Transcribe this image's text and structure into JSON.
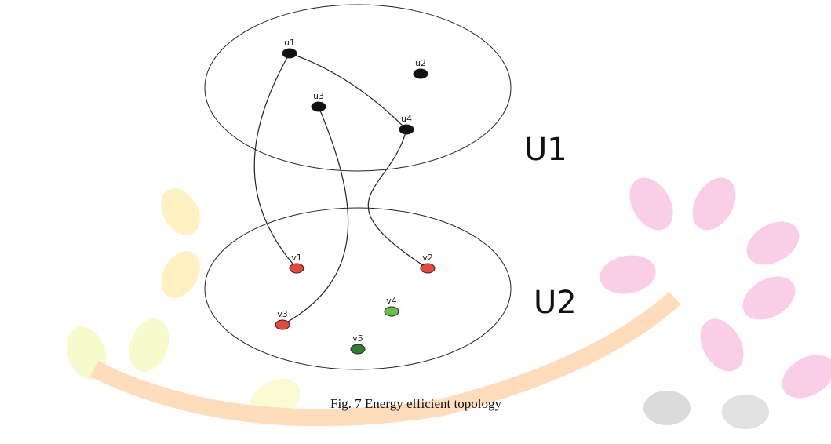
{
  "diagram": {
    "clusters": [
      {
        "label": "U1"
      },
      {
        "label": "U2"
      }
    ],
    "nodes": [
      {
        "label": "u1",
        "cluster": 0,
        "color": "#111111"
      },
      {
        "label": "u2",
        "cluster": 0,
        "color": "#111111"
      },
      {
        "label": "u3",
        "cluster": 0,
        "color": "#111111"
      },
      {
        "label": "u4",
        "cluster": 0,
        "color": "#111111"
      },
      {
        "label": "v1",
        "cluster": 1,
        "color": "#e8483a"
      },
      {
        "label": "v2",
        "cluster": 1,
        "color": "#e8483a"
      },
      {
        "label": "v3",
        "cluster": 1,
        "color": "#e8483a"
      },
      {
        "label": "v4",
        "cluster": 1,
        "color": "#6abf4b"
      },
      {
        "label": "v5",
        "cluster": 1,
        "color": "#2e7d32"
      }
    ],
    "edges": [
      {
        "from": 0,
        "to": 4
      },
      {
        "from": 0,
        "to": 3
      },
      {
        "from": 2,
        "to": 6
      },
      {
        "from": 3,
        "to": 5
      }
    ],
    "caption": "Fig.  7 Energy efficient topology"
  }
}
